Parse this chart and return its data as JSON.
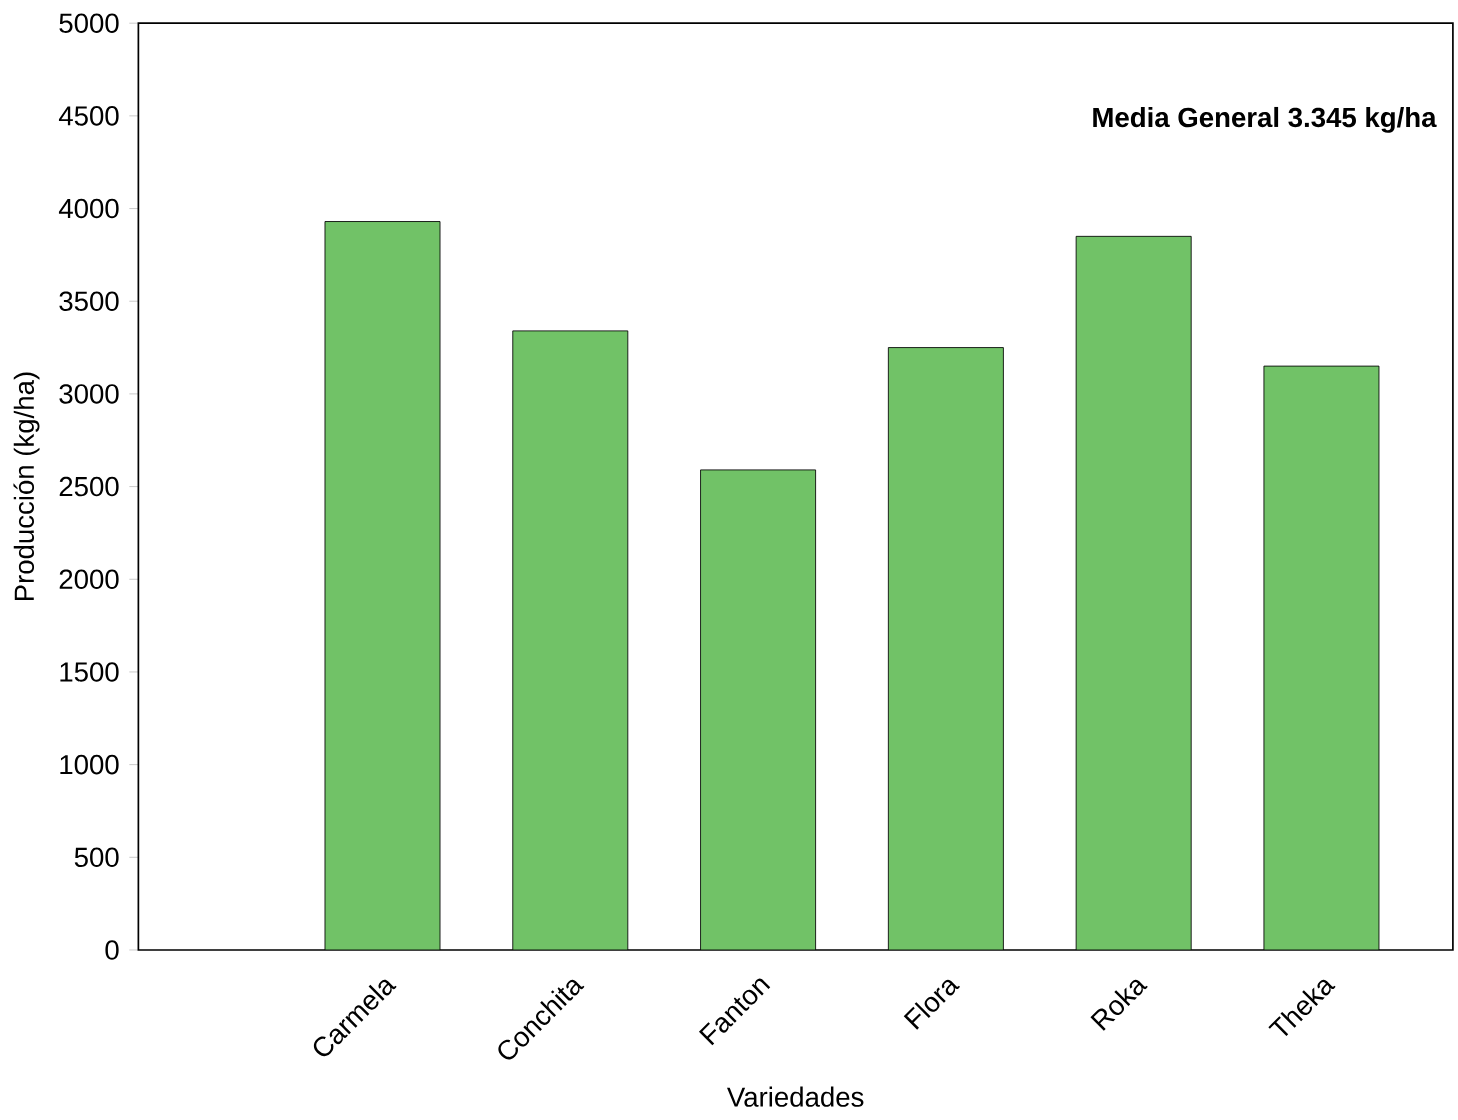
{
  "chart_data": {
    "type": "bar",
    "xlabel": "Variedades",
    "ylabel": "Producción (kg/ha)",
    "categories": [
      "Carmela",
      "Conchita",
      "Fanton",
      "Flora",
      "Roka",
      "Theka"
    ],
    "values": [
      3930,
      3340,
      2590,
      3250,
      3850,
      3150
    ],
    "color": "#71c267",
    "ylim": [
      0,
      5000
    ],
    "yticks": [
      0,
      500,
      1000,
      1500,
      2000,
      2500,
      3000,
      3500,
      4000,
      4500,
      5000
    ],
    "annotations": [
      "**Media General 3.345 kg/ha**"
    ]
  }
}
